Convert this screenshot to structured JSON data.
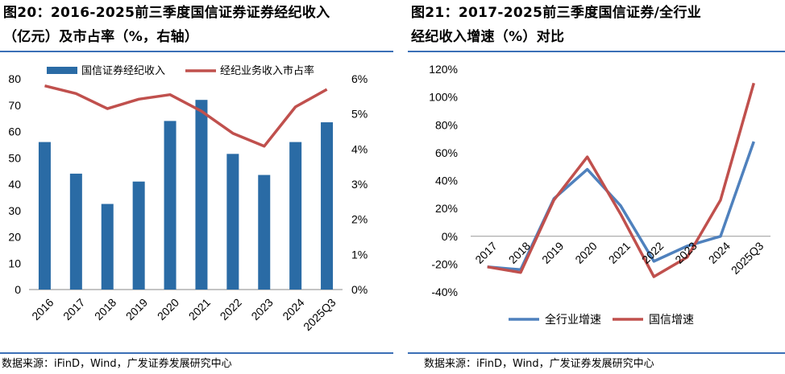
{
  "figure20": {
    "title_line1": "图20：2016-2025前三季度国信证券证券经纪收入",
    "title_line2": "（亿元）及市占率（%，右轴）",
    "source": "数据来源：iFinD，Wind，广发证券发展研究中心"
  },
  "figure21": {
    "title_line1": "图21：2017-2025前三季度国信证券/全行业",
    "title_line2": "经纪收入增速（%）对比",
    "source": "数据来源：iFinD，Wind，广发证券发展研究中心"
  },
  "chart_data": [
    {
      "type": "bar",
      "title": "2016-2025前三季度国信证券证券经纪收入（亿元）及市占率（%，右轴）",
      "categories": [
        "2016",
        "2017",
        "2018",
        "2019",
        "2020",
        "2021",
        "2022",
        "2023",
        "2024",
        "2025Q3"
      ],
      "series": [
        {
          "name": "国信证券经纪收入",
          "kind": "bar",
          "axis": "left",
          "color": "#2a6ba5",
          "values": [
            56,
            44,
            32.5,
            41,
            64,
            72,
            51.5,
            43.5,
            56,
            63.5
          ]
        },
        {
          "name": "经纪业务收入市占率",
          "kind": "line",
          "axis": "right",
          "color": "#c0504d",
          "values": [
            5.8,
            5.58,
            5.15,
            5.42,
            5.55,
            5.08,
            4.45,
            4.08,
            5.2,
            5.7
          ]
        }
      ],
      "y_left": {
        "min": 0,
        "max": 80,
        "step": 10,
        "tick_labels": [
          "0",
          "10",
          "20",
          "30",
          "40",
          "50",
          "60",
          "70",
          "80"
        ]
      },
      "y_right": {
        "min": 0,
        "max": 6,
        "step": 1,
        "tick_labels": [
          "0%",
          "1%",
          "2%",
          "3%",
          "4%",
          "5%",
          "6%"
        ]
      },
      "legend": "top",
      "grid": false
    },
    {
      "type": "line",
      "title": "2017-2025前三季度国信证券/全行业经纪收入增速（%）对比",
      "categories": [
        "2017",
        "2018",
        "2019",
        "2020",
        "2021",
        "2022",
        "2023",
        "2024",
        "2025Q3"
      ],
      "series": [
        {
          "name": "全行业增速",
          "color": "#4f81bd",
          "values": [
            -22,
            -24,
            27,
            48,
            22,
            -18,
            -7,
            0,
            68
          ]
        },
        {
          "name": "国信增速",
          "color": "#c0504d",
          "values": [
            -22,
            -26,
            26,
            57,
            16,
            -29,
            -15,
            26,
            110
          ]
        }
      ],
      "y": {
        "min": -40,
        "max": 120,
        "step": 20,
        "tick_labels": [
          "-40%",
          "-20%",
          "0%",
          "20%",
          "40%",
          "60%",
          "80%",
          "100%",
          "120%"
        ]
      },
      "legend": "bottom",
      "grid": false
    }
  ]
}
